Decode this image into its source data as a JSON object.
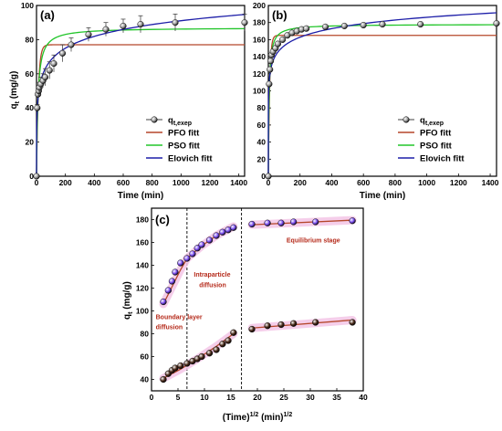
{
  "figure": {
    "panels": [
      "(a)",
      "(b)",
      "(c)"
    ]
  },
  "chart_data": [
    {
      "panel": "(a)",
      "type": "line",
      "xlabel": "Time (min)",
      "ylabel": "qt (mg/g)",
      "ylabel_main": "q",
      "ylabel_sub": "t",
      "ylabel_rest": " (mg/g)",
      "xlim": [
        0,
        1440
      ],
      "ylim": [
        0,
        100
      ],
      "xticks": [
        0,
        200,
        400,
        600,
        800,
        1000,
        1200,
        1400
      ],
      "yticks": [
        0,
        20,
        40,
        60,
        80,
        100
      ],
      "legend_position": "bottom-right",
      "legend": [
        {
          "label_main": "q",
          "label_sub": "t,exep",
          "kind": "marker"
        },
        {
          "label": "PFO fitt",
          "kind": "line",
          "color": "#b5472a"
        },
        {
          "label": "PSO fitt",
          "kind": "line",
          "color": "#22c52a"
        },
        {
          "label": "Elovich fitt",
          "kind": "line",
          "color": "#1d1ea8"
        }
      ],
      "scatter": {
        "name": "qt,exep",
        "x": [
          0,
          5,
          10,
          15,
          20,
          30,
          45,
          60,
          90,
          120,
          180,
          240,
          360,
          480,
          600,
          720,
          960,
          1440
        ],
        "y": [
          0,
          40,
          48,
          50,
          52,
          54,
          56,
          58,
          62,
          66,
          72,
          77,
          83,
          86,
          88,
          89,
          90,
          90
        ],
        "err": [
          0,
          2,
          2,
          3,
          3,
          4,
          4,
          5,
          5,
          5,
          5,
          4,
          4,
          4,
          4,
          5,
          5,
          5
        ]
      },
      "series": [
        {
          "name": "PFO fitt",
          "color": "#b5472a",
          "qe": 77,
          "k1": 0.08
        },
        {
          "name": "PSO fitt",
          "color": "#22c52a",
          "qe": 87,
          "k2": 0.0012
        },
        {
          "name": "Elovich fitt",
          "color": "#1d1ea8",
          "A": 22,
          "B": 10
        }
      ]
    },
    {
      "panel": "(b)",
      "type": "line",
      "xlabel": "Time (min)",
      "ylabel": "",
      "xlim": [
        0,
        1440
      ],
      "ylim": [
        0,
        200
      ],
      "xticks": [
        0,
        200,
        400,
        600,
        800,
        1000,
        1200,
        1400
      ],
      "yticks": [
        0,
        20,
        40,
        60,
        80,
        100,
        120,
        140,
        160,
        180,
        200
      ],
      "legend_position": "bottom-right",
      "legend": [
        {
          "label_main": "q",
          "label_sub": "t,exep",
          "kind": "marker"
        },
        {
          "label": "PFO fitt",
          "kind": "line",
          "color": "#b5472a"
        },
        {
          "label": "PSO fitt",
          "kind": "line",
          "color": "#22c52a"
        },
        {
          "label": "Elovich fitt",
          "kind": "line",
          "color": "#1d1ea8"
        }
      ],
      "scatter": {
        "name": "qt,exep",
        "x": [
          0,
          5,
          10,
          15,
          20,
          30,
          45,
          60,
          90,
          120,
          150,
          180,
          210,
          240,
          360,
          480,
          600,
          720,
          960,
          1440
        ],
        "y": [
          0,
          108,
          125,
          135,
          142,
          146,
          150,
          155,
          160,
          165,
          168,
          170,
          172,
          173,
          175,
          176,
          177,
          178,
          178,
          179
        ],
        "err": []
      },
      "series": [
        {
          "name": "PFO fitt",
          "color": "#b5472a",
          "qe": 165,
          "k1": 0.12
        },
        {
          "name": "PSO fitt",
          "color": "#22c52a",
          "qe": 178,
          "k2": 0.0012
        },
        {
          "name": "Elovich fitt",
          "color": "#1d1ea8",
          "A": 86,
          "B": 14.5
        }
      ]
    },
    {
      "panel": "(c)",
      "type": "scatter",
      "xlabel_main": "(Time)",
      "xlabel_sup1": "1/2",
      "xlabel_mid": " (min)",
      "xlabel_sup2": "1/2",
      "ylabel_main": "q",
      "ylabel_sub": "t",
      "ylabel_rest": " (mg/g)",
      "xlim": [
        0,
        40
      ],
      "ylim": [
        30,
        190
      ],
      "xticks": [
        0,
        5,
        10,
        15,
        20,
        25,
        30,
        35,
        40
      ],
      "yticks": [
        40,
        60,
        80,
        100,
        120,
        140,
        160,
        180
      ],
      "dividers_x": [
        6.7,
        17.0
      ],
      "annotations": [
        {
          "text": "Boundary layer",
          "x": 0.8,
          "y": 93,
          "color": "#b52a1a"
        },
        {
          "text": "diffusion",
          "x": 0.8,
          "y": 84,
          "color": "#b52a1a"
        },
        {
          "text": "Intraparticle",
          "x": 8.0,
          "y": 130,
          "color": "#b52a1a"
        },
        {
          "text": "diffusion",
          "x": 9.0,
          "y": 121,
          "color": "#b52a1a"
        },
        {
          "text": "Equilibrium stage",
          "x": 25.5,
          "y": 160,
          "color": "#b52a1a"
        }
      ],
      "series": [
        {
          "name": "upper",
          "color": "#7a4cf0",
          "x": [
            2.24,
            3.16,
            3.87,
            4.47,
            5.48,
            6.71,
            7.75,
            8.66,
            9.49,
            10.95,
            12.25,
            13.42,
            14.49,
            15.49,
            18.97,
            21.91,
            24.49,
            26.83,
            30.98,
            37.95
          ],
          "y": [
            108,
            118,
            126,
            134,
            142,
            146,
            150,
            155,
            158,
            162,
            166,
            169,
            171,
            173,
            176,
            177,
            177,
            178,
            178,
            179
          ]
        },
        {
          "name": "lower",
          "color": "#4a2a1a",
          "x": [
            2.24,
            3.16,
            3.87,
            4.47,
            5.48,
            6.71,
            7.75,
            8.66,
            9.49,
            10.95,
            12.25,
            13.42,
            14.49,
            15.49,
            18.97,
            21.91,
            24.49,
            26.83,
            30.98,
            37.95
          ],
          "y": [
            40,
            45,
            48,
            50,
            52,
            54,
            56,
            58,
            60,
            63,
            66,
            71,
            74,
            81,
            84,
            87,
            88,
            89,
            90,
            90
          ]
        }
      ],
      "fit_lines": [
        {
          "x": [
            2.24,
            5.48,
            6.71,
            9.49,
            12.25,
            15.49
          ],
          "y": [
            106,
            136,
            146,
            157,
            166,
            174
          ]
        },
        {
          "x": [
            18.97,
            37.95
          ],
          "y": [
            175.5,
            179.5
          ]
        },
        {
          "x": [
            2.24,
            5.48,
            8.66,
            12.25,
            15.49
          ],
          "y": [
            41,
            49,
            58,
            69,
            80
          ]
        },
        {
          "x": [
            18.97,
            37.95
          ],
          "y": [
            85,
            92
          ]
        }
      ]
    }
  ]
}
